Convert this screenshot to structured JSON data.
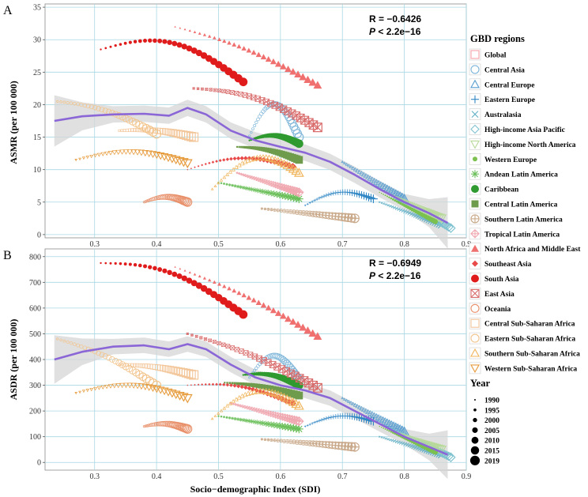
{
  "chart_data": [
    {
      "panel": "A",
      "type": "scatter",
      "ylabel": "ASMR (per 100 000)",
      "xlabel": "",
      "xlim": [
        0.22,
        0.9
      ],
      "ylim": [
        -0.5,
        35.5
      ],
      "xticks": [
        "0.3",
        "0.4",
        "0.5",
        "0.6",
        "0.7",
        "0.8",
        "0.9"
      ],
      "yticks": [
        "0",
        "5",
        "10",
        "15",
        "20",
        "25",
        "30",
        "35"
      ],
      "stat_r": "R = −0.6426",
      "stat_p_label": "P",
      "stat_p_value": " < 2.2e−16",
      "smooth": [
        [
          0.235,
          17.5
        ],
        [
          0.28,
          18.2
        ],
        [
          0.33,
          18.5
        ],
        [
          0.38,
          18.6
        ],
        [
          0.42,
          18.3
        ],
        [
          0.45,
          19.5
        ],
        [
          0.48,
          18.5
        ],
        [
          0.52,
          16.0
        ],
        [
          0.56,
          14.5
        ],
        [
          0.6,
          13.5
        ],
        [
          0.64,
          12.6
        ],
        [
          0.68,
          11.2
        ],
        [
          0.72,
          9.2
        ],
        [
          0.76,
          7.0
        ],
        [
          0.8,
          5.0
        ],
        [
          0.84,
          3.3
        ],
        [
          0.87,
          1.8
        ]
      ],
      "series": [
        {
          "region": "Central Asia",
          "x0": 0.55,
          "x1": 0.63,
          "y0": 15.2,
          "y1": 15.0,
          "arc": 5.0
        },
        {
          "region": "Central Europe",
          "x0": 0.7,
          "x1": 0.8,
          "y0": 11.2,
          "y1": 5.5,
          "arc": 0
        },
        {
          "region": "Eastern Europe",
          "x0": 0.64,
          "x1": 0.75,
          "y0": 4.5,
          "y1": 5.5,
          "arc": 1.5
        },
        {
          "region": "Australasia",
          "x0": 0.76,
          "x1": 0.86,
          "y0": 5.0,
          "y1": 1.5,
          "arc": 0
        },
        {
          "region": "High-income Asia Pacific",
          "x0": 0.78,
          "x1": 0.875,
          "y0": 6.0,
          "y1": 1.0,
          "arc": 0
        },
        {
          "region": "High-income North America",
          "x0": 0.78,
          "x1": 0.86,
          "y0": 6.0,
          "y1": 2.5,
          "arc": 0
        },
        {
          "region": "Western Europe",
          "x0": 0.76,
          "x1": 0.85,
          "y0": 6.5,
          "y1": 2.0,
          "arc": 0
        },
        {
          "region": "Andean Latin America",
          "x0": 0.5,
          "x1": 0.63,
          "y0": 8.0,
          "y1": 5.5,
          "arc": 0
        },
        {
          "region": "Caribbean",
          "x0": 0.55,
          "x1": 0.63,
          "y0": 14.5,
          "y1": 14.0,
          "arc": 1.0
        },
        {
          "region": "Central Latin America",
          "x0": 0.53,
          "x1": 0.63,
          "y0": 13.5,
          "y1": 11.5,
          "arc": 0.5
        },
        {
          "region": "Southern Latin America",
          "x0": 0.57,
          "x1": 0.72,
          "y0": 4.0,
          "y1": 2.5,
          "arc": 0
        },
        {
          "region": "Tropical Latin America",
          "x0": 0.53,
          "x1": 0.63,
          "y0": 9.5,
          "y1": 6.5,
          "arc": 0
        },
        {
          "region": "North Africa and Middle East",
          "x0": 0.43,
          "x1": 0.66,
          "y0": 32.0,
          "y1": 23.0,
          "arc": 1.0
        },
        {
          "region": "Southeast Asia",
          "x0": 0.45,
          "x1": 0.62,
          "y0": 10.0,
          "y1": 10.5,
          "arc": 1.5
        },
        {
          "region": "South Asia",
          "x0": 0.31,
          "x1": 0.54,
          "y0": 28.5,
          "y1": 23.5,
          "arc": 3.5
        },
        {
          "region": "East Asia",
          "x0": 0.46,
          "x1": 0.66,
          "y0": 22.5,
          "y1": 16.5,
          "arc": 1.5
        },
        {
          "region": "Oceania",
          "x0": 0.38,
          "x1": 0.45,
          "y0": 5.0,
          "y1": 5.0,
          "arc": 0.8
        },
        {
          "region": "Central Sub-Saharan Africa",
          "x0": 0.34,
          "x1": 0.46,
          "y0": 16.0,
          "y1": 15.0,
          "arc": 0.5
        },
        {
          "region": "Eastern Sub-Saharan Africa",
          "x0": 0.24,
          "x1": 0.4,
          "y0": 20.5,
          "y1": 15.5,
          "arc": 1.0
        },
        {
          "region": "Southern Sub-Saharan Africa",
          "x0": 0.49,
          "x1": 0.63,
          "y0": 7.0,
          "y1": 9.5,
          "arc": 3.5
        },
        {
          "region": "Western Sub-Saharan Africa",
          "x0": 0.27,
          "x1": 0.45,
          "y0": 11.5,
          "y1": 11.0,
          "arc": 1.5
        }
      ]
    },
    {
      "panel": "B",
      "type": "scatter",
      "ylabel": "ASDR (per 100 000)",
      "xlabel": "Socio−demographic Index (SDI)",
      "xlim": [
        0.22,
        0.9
      ],
      "ylim": [
        -30,
        830
      ],
      "xticks": [
        "0.3",
        "0.4",
        "0.5",
        "0.6",
        "0.7",
        "0.8",
        "0.9"
      ],
      "yticks": [
        "0",
        "100",
        "200",
        "300",
        "400",
        "500",
        "600",
        "700",
        "800"
      ],
      "stat_r": "R = −0.6949",
      "stat_p_label": "P",
      "stat_p_value": " < 2.2e−16",
      "smooth": [
        [
          0.235,
          400
        ],
        [
          0.28,
          430
        ],
        [
          0.33,
          450
        ],
        [
          0.38,
          455
        ],
        [
          0.42,
          440
        ],
        [
          0.45,
          460
        ],
        [
          0.48,
          440
        ],
        [
          0.52,
          380
        ],
        [
          0.56,
          330
        ],
        [
          0.6,
          300
        ],
        [
          0.64,
          280
        ],
        [
          0.68,
          250
        ],
        [
          0.72,
          200
        ],
        [
          0.76,
          150
        ],
        [
          0.8,
          100
        ],
        [
          0.84,
          60
        ],
        [
          0.87,
          30
        ]
      ],
      "series": [
        {
          "region": "Central Asia",
          "x0": 0.55,
          "x1": 0.63,
          "y0": 330,
          "y1": 320,
          "arc": 90
        },
        {
          "region": "Central Europe",
          "x0": 0.7,
          "x1": 0.8,
          "y0": 250,
          "y1": 120,
          "arc": 0
        },
        {
          "region": "Eastern Europe",
          "x0": 0.64,
          "x1": 0.75,
          "y0": 140,
          "y1": 160,
          "arc": 30
        },
        {
          "region": "Australasia",
          "x0": 0.76,
          "x1": 0.86,
          "y0": 100,
          "y1": 30,
          "arc": 0
        },
        {
          "region": "High-income Asia Pacific",
          "x0": 0.78,
          "x1": 0.875,
          "y0": 130,
          "y1": 20,
          "arc": 0
        },
        {
          "region": "High-income North America",
          "x0": 0.78,
          "x1": 0.86,
          "y0": 120,
          "y1": 50,
          "arc": 0
        },
        {
          "region": "Western Europe",
          "x0": 0.76,
          "x1": 0.85,
          "y0": 140,
          "y1": 40,
          "arc": 0
        },
        {
          "region": "Andean Latin America",
          "x0": 0.5,
          "x1": 0.63,
          "y0": 180,
          "y1": 130,
          "arc": 0
        },
        {
          "region": "Caribbean",
          "x0": 0.54,
          "x1": 0.63,
          "y0": 340,
          "y1": 300,
          "arc": 20
        },
        {
          "region": "Central Latin America",
          "x0": 0.51,
          "x1": 0.63,
          "y0": 310,
          "y1": 260,
          "arc": 10
        },
        {
          "region": "Southern Latin America",
          "x0": 0.57,
          "x1": 0.72,
          "y0": 90,
          "y1": 60,
          "arc": 0
        },
        {
          "region": "Tropical Latin America",
          "x0": 0.52,
          "x1": 0.63,
          "y0": 230,
          "y1": 160,
          "arc": 0
        },
        {
          "region": "North Africa and Middle East",
          "x0": 0.43,
          "x1": 0.66,
          "y0": 760,
          "y1": 490,
          "arc": 20
        },
        {
          "region": "Southeast Asia",
          "x0": 0.45,
          "x1": 0.62,
          "y0": 300,
          "y1": 230,
          "arc": 30
        },
        {
          "region": "South Asia",
          "x0": 0.31,
          "x1": 0.54,
          "y0": 775,
          "y1": 575,
          "arc": 60
        },
        {
          "region": "East Asia",
          "x0": 0.45,
          "x1": 0.66,
          "y0": 500,
          "y1": 290,
          "arc": 20
        },
        {
          "region": "Oceania",
          "x0": 0.38,
          "x1": 0.45,
          "y0": 140,
          "y1": 130,
          "arc": 15
        },
        {
          "region": "Central Sub-Saharan Africa",
          "x0": 0.34,
          "x1": 0.46,
          "y0": 380,
          "y1": 340,
          "arc": 10
        },
        {
          "region": "Eastern Sub-Saharan Africa",
          "x0": 0.24,
          "x1": 0.4,
          "y0": 480,
          "y1": 300,
          "arc": 20
        },
        {
          "region": "Southern Sub-Saharan Africa",
          "x0": 0.49,
          "x1": 0.63,
          "y0": 170,
          "y1": 220,
          "arc": 80
        },
        {
          "region": "Western Sub-Saharan Africa",
          "x0": 0.27,
          "x1": 0.45,
          "y0": 270,
          "y1": 250,
          "arc": 40
        }
      ]
    }
  ],
  "legend": {
    "title": "GBD regions",
    "items": [
      {
        "label": "Global",
        "shape": "square-open",
        "color": "#f5a3a8"
      },
      {
        "label": "Central Asia",
        "shape": "circle-open",
        "color": "#7fb6d9"
      },
      {
        "label": "Central Europe",
        "shape": "triangle-open",
        "color": "#5a9fd0"
      },
      {
        "label": "Eastern Europe",
        "shape": "plus",
        "color": "#2f86c4"
      },
      {
        "label": "Australasia",
        "shape": "cross",
        "color": "#5faec4"
      },
      {
        "label": "High-income Asia Pacific",
        "shape": "diamond-open",
        "color": "#7fc2d0"
      },
      {
        "label": "High-income North America",
        "shape": "triangle-down-open",
        "color": "#b7d99a"
      },
      {
        "label": "Western Europe",
        "shape": "circle-small",
        "color": "#7cc04f"
      },
      {
        "label": "Andean Latin America",
        "shape": "asterisk",
        "color": "#6bbf5a"
      },
      {
        "label": "Caribbean",
        "shape": "circle-filled",
        "color": "#2f9a2f"
      },
      {
        "label": "Central Latin America",
        "shape": "square-filled",
        "color": "#6f9c4c"
      },
      {
        "label": "Southern Latin America",
        "shape": "circle-plus",
        "color": "#c9a98a"
      },
      {
        "label": "Tropical Latin America",
        "shape": "diamond-plus",
        "color": "#f0a8b0"
      },
      {
        "label": "North Africa and Middle East",
        "shape": "triangle-filled",
        "color": "#f07070"
      },
      {
        "label": "Southeast Asia",
        "shape": "diamond-filled",
        "color": "#e84a4a"
      },
      {
        "label": "South Asia",
        "shape": "circle-filled",
        "color": "#e01b1b"
      },
      {
        "label": "East Asia",
        "shape": "square-x",
        "color": "#d96a6a"
      },
      {
        "label": "Oceania",
        "shape": "circle-open",
        "color": "#e8906a"
      },
      {
        "label": "Central Sub-Saharan Africa",
        "shape": "square-open",
        "color": "#f3c69a"
      },
      {
        "label": "Eastern Sub-Saharan Africa",
        "shape": "circle-open",
        "color": "#f2c48c"
      },
      {
        "label": "Southern Sub-Saharan Africa",
        "shape": "triangle-open",
        "color": "#f0b45a"
      },
      {
        "label": "Western Sub-Saharan Africa",
        "shape": "triangle-down-open",
        "color": "#e69a3a"
      }
    ]
  },
  "size_legend": {
    "title": "Year",
    "items": [
      "1990",
      "1995",
      "2000",
      "2005",
      "2010",
      "2015",
      "2019"
    ]
  },
  "colors": {
    "smooth_line": "#8a66d6",
    "smooth_band": "#d6d6d6",
    "grid": "#a9d8e4"
  }
}
